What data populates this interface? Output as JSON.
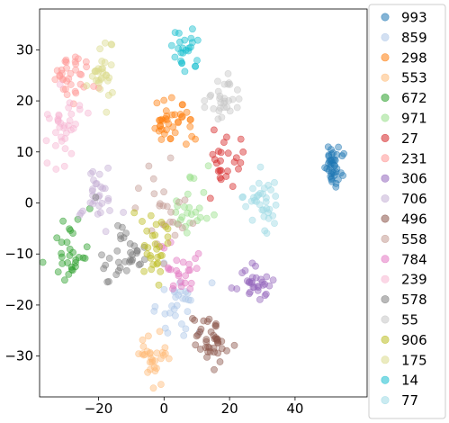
{
  "chart_data": {
    "type": "scatter",
    "title": "",
    "xlabel": "",
    "ylabel": "",
    "xlim": [
      -38,
      62
    ],
    "ylim": [
      -38,
      38
    ],
    "xticks": [
      -20,
      0,
      20,
      40
    ],
    "yticks": [
      -30,
      -20,
      -10,
      0,
      10,
      20,
      30
    ],
    "xtick_labels": [
      "−20",
      "0",
      "20",
      "40"
    ],
    "ytick_labels": [
      "−30",
      "−20",
      "−10",
      "0",
      "10",
      "20",
      "30"
    ],
    "grid": false,
    "legend_position": "outside right",
    "point_alpha": 0.45,
    "series": [
      {
        "name": "993",
        "color": "#1f77b4",
        "cx": 52,
        "cy": 7,
        "sx": 1.6,
        "sy": 2.0,
        "n": 40
      },
      {
        "name": "859",
        "color": "#aec7e8",
        "cx": 4,
        "cy": -20,
        "sx": 3.0,
        "sy": 3.5,
        "n": 30
      },
      {
        "name": "298",
        "color": "#ff7f0e",
        "cx": 2,
        "cy": 16,
        "sx": 3.2,
        "sy": 2.5,
        "n": 40
      },
      {
        "name": "553",
        "color": "#ffbb78",
        "cx": -3,
        "cy": -30,
        "sx": 2.5,
        "sy": 2.5,
        "n": 30
      },
      {
        "name": "672",
        "color": "#2ca02c",
        "cx": -28,
        "cy": -10,
        "sx": 2.5,
        "sy": 4.0,
        "n": 30
      },
      {
        "name": "971",
        "color": "#98df8a",
        "cx": 8,
        "cy": -2,
        "sx": 3.0,
        "sy": 3.5,
        "n": 25
      },
      {
        "name": "27",
        "color": "#d62728",
        "cx": 19,
        "cy": 9,
        "sx": 2.5,
        "sy": 3.0,
        "n": 25
      },
      {
        "name": "231",
        "color": "#ff9896",
        "cx": -28,
        "cy": 25,
        "sx": 3.0,
        "sy": 2.5,
        "n": 35
      },
      {
        "name": "306",
        "color": "#9467bd",
        "cx": 28,
        "cy": -16,
        "sx": 3.0,
        "sy": 2.0,
        "n": 30
      },
      {
        "name": "706",
        "color": "#c5b0d5",
        "cx": -20,
        "cy": 1,
        "sx": 2.5,
        "sy": 3.0,
        "n": 30
      },
      {
        "name": "496",
        "color": "#8c564b",
        "cx": 14,
        "cy": -27,
        "sx": 2.5,
        "sy": 2.5,
        "n": 40
      },
      {
        "name": "558",
        "color": "#c49c94",
        "cx": -1,
        "cy": -2,
        "sx": 3.5,
        "sy": 4.5,
        "n": 25
      },
      {
        "name": "784",
        "color": "#e377c2",
        "cx": 6,
        "cy": -13,
        "sx": 3.0,
        "sy": 3.0,
        "n": 25
      },
      {
        "name": "239",
        "color": "#f7b6d2",
        "cx": -30,
        "cy": 15,
        "sx": 3.0,
        "sy": 3.0,
        "n": 35
      },
      {
        "name": "578",
        "color": "#7f7f7f",
        "cx": -12,
        "cy": -10,
        "sx": 3.0,
        "sy": 3.5,
        "n": 35
      },
      {
        "name": "55",
        "color": "#c7c7c7",
        "cx": 18,
        "cy": 20,
        "sx": 2.5,
        "sy": 2.5,
        "n": 30
      },
      {
        "name": "906",
        "color": "#bcbd22",
        "cx": -3,
        "cy": -9,
        "sx": 2.5,
        "sy": 3.5,
        "n": 30
      },
      {
        "name": "175",
        "color": "#dbdb8d",
        "cx": -19,
        "cy": 26,
        "sx": 2.0,
        "sy": 3.0,
        "n": 30
      },
      {
        "name": "14",
        "color": "#17becf",
        "cx": 7,
        "cy": 30,
        "sx": 2.0,
        "sy": 2.5,
        "n": 25
      },
      {
        "name": "77",
        "color": "#9edae5",
        "cx": 31,
        "cy": 0,
        "sx": 3.0,
        "sy": 2.5,
        "n": 35
      }
    ]
  }
}
